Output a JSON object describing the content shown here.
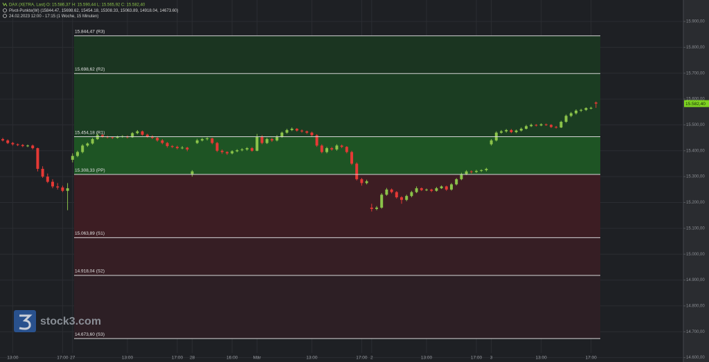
{
  "chart_data": {
    "type": "candlestick",
    "symbol": "DAX (XETRA, Last)",
    "quote": [
      "O: 15.586,37",
      "H: 15.590,44",
      "L: 15.565,92",
      "C: 15.582,40"
    ],
    "indicator": "Pivot-Punkte(W)  (15844.47, 15698.62, 15454.18, 15308.33, 15063.89, 14918.04, 14673.60)",
    "period": "24.02.2023 12:00 - 17:15   (1 Woche, 15 Minuten)",
    "watermark": "stock3.com",
    "last_label": "15.582,40",
    "up_color": "#8bc34a",
    "down_color": "#e53935",
    "last_color": "#7ed321",
    "grid": true,
    "ylim": [
      14583,
      15983
    ],
    "yticks": [
      {
        "value": 14600,
        "label": "14.600,00"
      },
      {
        "value": 14700,
        "label": "14.700,00"
      },
      {
        "value": 14800,
        "label": "14.800,00"
      },
      {
        "value": 14900,
        "label": "14.900,00"
      },
      {
        "value": 15000,
        "label": "15.000,00"
      },
      {
        "value": 15100,
        "label": "15.100,00"
      },
      {
        "value": 15200,
        "label": "15.200,00"
      },
      {
        "value": 15300,
        "label": "15.300,00"
      },
      {
        "value": 15400,
        "label": "15.400,00"
      },
      {
        "value": 15500,
        "label": "15.500,00"
      },
      {
        "value": 15600,
        "label": "15.600,00"
      },
      {
        "value": 15700,
        "label": "15.700,00"
      },
      {
        "value": 15800,
        "label": "15.800,00"
      },
      {
        "value": 15900,
        "label": "15.900,00"
      }
    ],
    "levels": [
      {
        "value": 15844.47,
        "label": "15.844,47 (R3)"
      },
      {
        "value": 15698.62,
        "label": "15.698,62 (R2)"
      },
      {
        "value": 15454.18,
        "label": "15.454,18 (R1)"
      },
      {
        "value": 15308.33,
        "label": "15.308,33 (PP)"
      },
      {
        "value": 15063.89,
        "label": "15.063,89 (S1)"
      },
      {
        "value": 14918.04,
        "label": "14.918,04 (S2)"
      },
      {
        "value": 14673.6,
        "label": "14.673,60 (S3)"
      }
    ],
    "zone_colors": [
      "#1b3521",
      "#1b3d22",
      "#1e5424",
      "#3d1d23",
      "#361e24",
      "#2d1f25"
    ],
    "categories": [
      null,
      null,
      "13:00",
      null,
      null,
      null,
      null,
      null,
      null,
      null,
      null,
      null,
      "17:00",
      null,
      "27",
      null,
      null,
      null,
      null,
      null,
      null,
      null,
      null,
      null,
      null,
      "13:00",
      null,
      null,
      null,
      null,
      null,
      null,
      null,
      null,
      null,
      "17:00",
      null,
      null,
      "28",
      null,
      null,
      null,
      null,
      null,
      null,
      null,
      "16:00",
      null,
      null,
      null,
      null,
      "Mär",
      null,
      null,
      null,
      null,
      null,
      null,
      null,
      null,
      null,
      null,
      "13:00",
      null,
      null,
      null,
      null,
      null,
      null,
      null,
      null,
      null,
      "17:00",
      null,
      "2",
      null,
      null,
      null,
      null,
      null,
      null,
      null,
      null,
      null,
      null,
      "13:00",
      null,
      null,
      null,
      null,
      null,
      null,
      null,
      null,
      null,
      "17:00",
      null,
      null,
      "3",
      null,
      null,
      null,
      null,
      null,
      null,
      null,
      null,
      null,
      "13:00",
      null,
      null,
      null,
      null,
      null,
      null,
      null,
      null,
      null,
      "17:00",
      null
    ],
    "ohlc": [
      [
        15445,
        15450,
        15436,
        15440
      ],
      [
        15440,
        15444,
        15426,
        15430
      ],
      [
        15430,
        15434,
        15420,
        15425
      ],
      [
        15425,
        15428,
        15418,
        15422
      ],
      [
        15422,
        15426,
        15414,
        15418
      ],
      [
        15418,
        15424,
        15414,
        15420
      ],
      [
        15420,
        15424,
        15405,
        15410
      ],
      [
        15410,
        15412,
        15320,
        15330
      ],
      [
        15330,
        15340,
        15295,
        15300
      ],
      [
        15300,
        15312,
        15275,
        15280
      ],
      [
        15280,
        15290,
        15255,
        15262
      ],
      [
        15262,
        15275,
        15250,
        15258
      ],
      [
        15258,
        15265,
        15240,
        15245
      ],
      [
        15245,
        15275,
        15170,
        15255
      ],
      [
        15365,
        15390,
        15355,
        15380
      ],
      [
        15380,
        15400,
        15375,
        15395
      ],
      [
        15395,
        15425,
        15390,
        15420
      ],
      [
        15420,
        15432,
        15415,
        15428
      ],
      [
        15428,
        15450,
        15424,
        15445
      ],
      [
        15445,
        15466,
        15442,
        15460
      ],
      [
        15460,
        15464,
        15450,
        15455
      ],
      [
        15455,
        15458,
        15448,
        15452
      ],
      [
        15452,
        15455,
        15446,
        15450
      ],
      [
        15450,
        15458,
        15447,
        15454
      ],
      [
        15454,
        15460,
        15450,
        15456
      ],
      [
        15456,
        15459,
        15448,
        15452
      ],
      [
        15452,
        15472,
        15450,
        15468
      ],
      [
        15468,
        15480,
        15464,
        15475
      ],
      [
        15475,
        15478,
        15458,
        15462
      ],
      [
        15462,
        15466,
        15450,
        15455
      ],
      [
        15455,
        15460,
        15445,
        15450
      ],
      [
        15450,
        15454,
        15435,
        15440
      ],
      [
        15440,
        15445,
        15425,
        15430
      ],
      [
        15430,
        15434,
        15412,
        15418
      ],
      [
        15418,
        15422,
        15410,
        15415
      ],
      [
        15415,
        15420,
        15405,
        15410
      ],
      [
        15410,
        15418,
        15406,
        15412
      ],
      [
        15412,
        15415,
        15398,
        15405
      ],
      [
        15310,
        15325,
        15300,
        15320
      ],
      [
        15430,
        15446,
        15426,
        15440
      ],
      [
        15440,
        15450,
        15436,
        15445
      ],
      [
        15445,
        15452,
        15440,
        15448
      ],
      [
        15448,
        15450,
        15425,
        15430
      ],
      [
        15430,
        15434,
        15395,
        15400
      ],
      [
        15400,
        15405,
        15388,
        15395
      ],
      [
        15395,
        15398,
        15384,
        15390
      ],
      [
        15390,
        15402,
        15386,
        15398
      ],
      [
        15398,
        15406,
        15394,
        15402
      ],
      [
        15402,
        15410,
        15398,
        15405
      ],
      [
        15405,
        15414,
        15400,
        15410
      ],
      [
        15410,
        15414,
        15396,
        15400
      ],
      [
        15400,
        15465,
        15398,
        15455
      ],
      [
        15455,
        15460,
        15425,
        15430
      ],
      [
        15430,
        15450,
        15426,
        15445
      ],
      [
        15445,
        15450,
        15434,
        15440
      ],
      [
        15440,
        15460,
        15436,
        15455
      ],
      [
        15455,
        15474,
        15450,
        15470
      ],
      [
        15470,
        15485,
        15466,
        15480
      ],
      [
        15480,
        15490,
        15476,
        15485
      ],
      [
        15485,
        15488,
        15474,
        15478
      ],
      [
        15478,
        15482,
        15470,
        15475
      ],
      [
        15475,
        15478,
        15465,
        15470
      ],
      [
        15470,
        15474,
        15455,
        15460
      ],
      [
        15460,
        15464,
        15415,
        15420
      ],
      [
        15420,
        15425,
        15390,
        15395
      ],
      [
        15395,
        15415,
        15390,
        15410
      ],
      [
        15410,
        15415,
        15400,
        15405
      ],
      [
        15405,
        15425,
        15400,
        15420
      ],
      [
        15420,
        15424,
        15410,
        15415
      ],
      [
        15415,
        15418,
        15390,
        15395
      ],
      [
        15395,
        15400,
        15345,
        15350
      ],
      [
        15350,
        15355,
        15285,
        15290
      ],
      [
        15290,
        15295,
        15265,
        15275
      ],
      [
        15275,
        15288,
        15270,
        15282
      ],
      [
        15180,
        15195,
        15165,
        15175
      ],
      [
        15175,
        15186,
        15170,
        15180
      ],
      [
        15180,
        15236,
        15176,
        15230
      ],
      [
        15230,
        15256,
        15226,
        15250
      ],
      [
        15250,
        15254,
        15235,
        15240
      ],
      [
        15240,
        15244,
        15215,
        15220
      ],
      [
        15220,
        15224,
        15195,
        15210
      ],
      [
        15210,
        15230,
        15205,
        15225
      ],
      [
        15225,
        15245,
        15220,
        15240
      ],
      [
        15240,
        15262,
        15236,
        15255
      ],
      [
        15255,
        15258,
        15244,
        15248
      ],
      [
        15248,
        15254,
        15244,
        15250
      ],
      [
        15250,
        15253,
        15240,
        15245
      ],
      [
        15245,
        15260,
        15242,
        15255
      ],
      [
        15255,
        15266,
        15252,
        15262
      ],
      [
        15262,
        15265,
        15245,
        15250
      ],
      [
        15250,
        15275,
        15246,
        15270
      ],
      [
        15270,
        15294,
        15266,
        15290
      ],
      [
        15290,
        15315,
        15286,
        15310
      ],
      [
        15310,
        15325,
        15306,
        15320
      ],
      [
        15320,
        15324,
        15312,
        15318
      ],
      [
        15318,
        15326,
        15314,
        15322
      ],
      [
        15322,
        15328,
        15318,
        15325
      ],
      [
        15325,
        15334,
        15320,
        15330
      ],
      [
        15425,
        15445,
        15420,
        15440
      ],
      [
        15440,
        15475,
        15436,
        15470
      ],
      [
        15470,
        15480,
        15466,
        15475
      ],
      [
        15475,
        15484,
        15470,
        15480
      ],
      [
        15480,
        15484,
        15468,
        15472
      ],
      [
        15472,
        15482,
        15468,
        15478
      ],
      [
        15478,
        15490,
        15474,
        15485
      ],
      [
        15485,
        15500,
        15482,
        15495
      ],
      [
        15495,
        15505,
        15492,
        15500
      ],
      [
        15500,
        15503,
        15494,
        15498
      ],
      [
        15498,
        15506,
        15495,
        15502
      ],
      [
        15502,
        15505,
        15496,
        15500
      ],
      [
        15500,
        15503,
        15488,
        15492
      ],
      [
        15492,
        15496,
        15486,
        15490
      ],
      [
        15490,
        15516,
        15488,
        15512
      ],
      [
        15512,
        15540,
        15508,
        15535
      ],
      [
        15535,
        15550,
        15530,
        15545
      ],
      [
        15545,
        15560,
        15540,
        15555
      ],
      [
        15555,
        15562,
        15550,
        15558
      ],
      [
        15558,
        15568,
        15554,
        15565
      ],
      [
        15565,
        15570,
        15560,
        15566
      ],
      [
        15586.37,
        15590.44,
        15565.92,
        15582.4
      ]
    ]
  }
}
